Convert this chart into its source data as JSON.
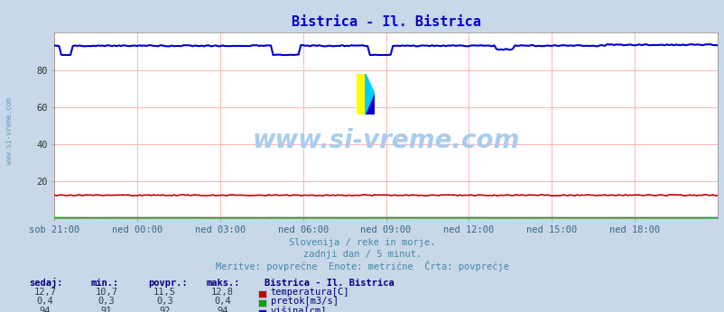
{
  "title": "Bistrica - Il. Bistrica",
  "title_color": "#0000cc",
  "outer_bg": "#c8d8e8",
  "plot_bg_color": "#ffffff",
  "xlabel_ticks": [
    "sob 21:00",
    "ned 00:00",
    "ned 03:00",
    "ned 06:00",
    "ned 09:00",
    "ned 12:00",
    "ned 15:00",
    "ned 18:00"
  ],
  "tick_positions": [
    0,
    36,
    72,
    108,
    144,
    180,
    216,
    252
  ],
  "total_points": 289,
  "ylim": [
    0,
    100
  ],
  "yticks": [
    20,
    40,
    60,
    80
  ],
  "grid_color": "#ffaaaa",
  "temp_value": "12,7",
  "temp_min": "10,7",
  "temp_avg": "11,5",
  "temp_max": "12,8",
  "flow_value": "0,4",
  "flow_min": "0,3",
  "flow_avg": "0,3",
  "flow_max": "0,4",
  "height_value": "94",
  "height_min": "91",
  "height_avg": "92",
  "height_max": "94",
  "temp_color": "#cc0000",
  "flow_color": "#00aa00",
  "height_color": "#0000cc",
  "watermark": "www.si-vreme.com",
  "watermark_color": "#aaccee",
  "subtitle1": "Slovenija / reke in morje.",
  "subtitle2": "zadnji dan / 5 minut.",
  "subtitle3": "Meritve: povprečne  Enote: metrične  Črta: povprečje",
  "subtitle_color": "#4488aa",
  "legend_title": "Bistrica - Il. Bistrica",
  "legend_title_color": "#000080",
  "label_color": "#000080",
  "col_headers": [
    "sedaj:",
    "min.:",
    "povpr.:",
    "maks.:"
  ],
  "sidewater_color": "#6699bb"
}
